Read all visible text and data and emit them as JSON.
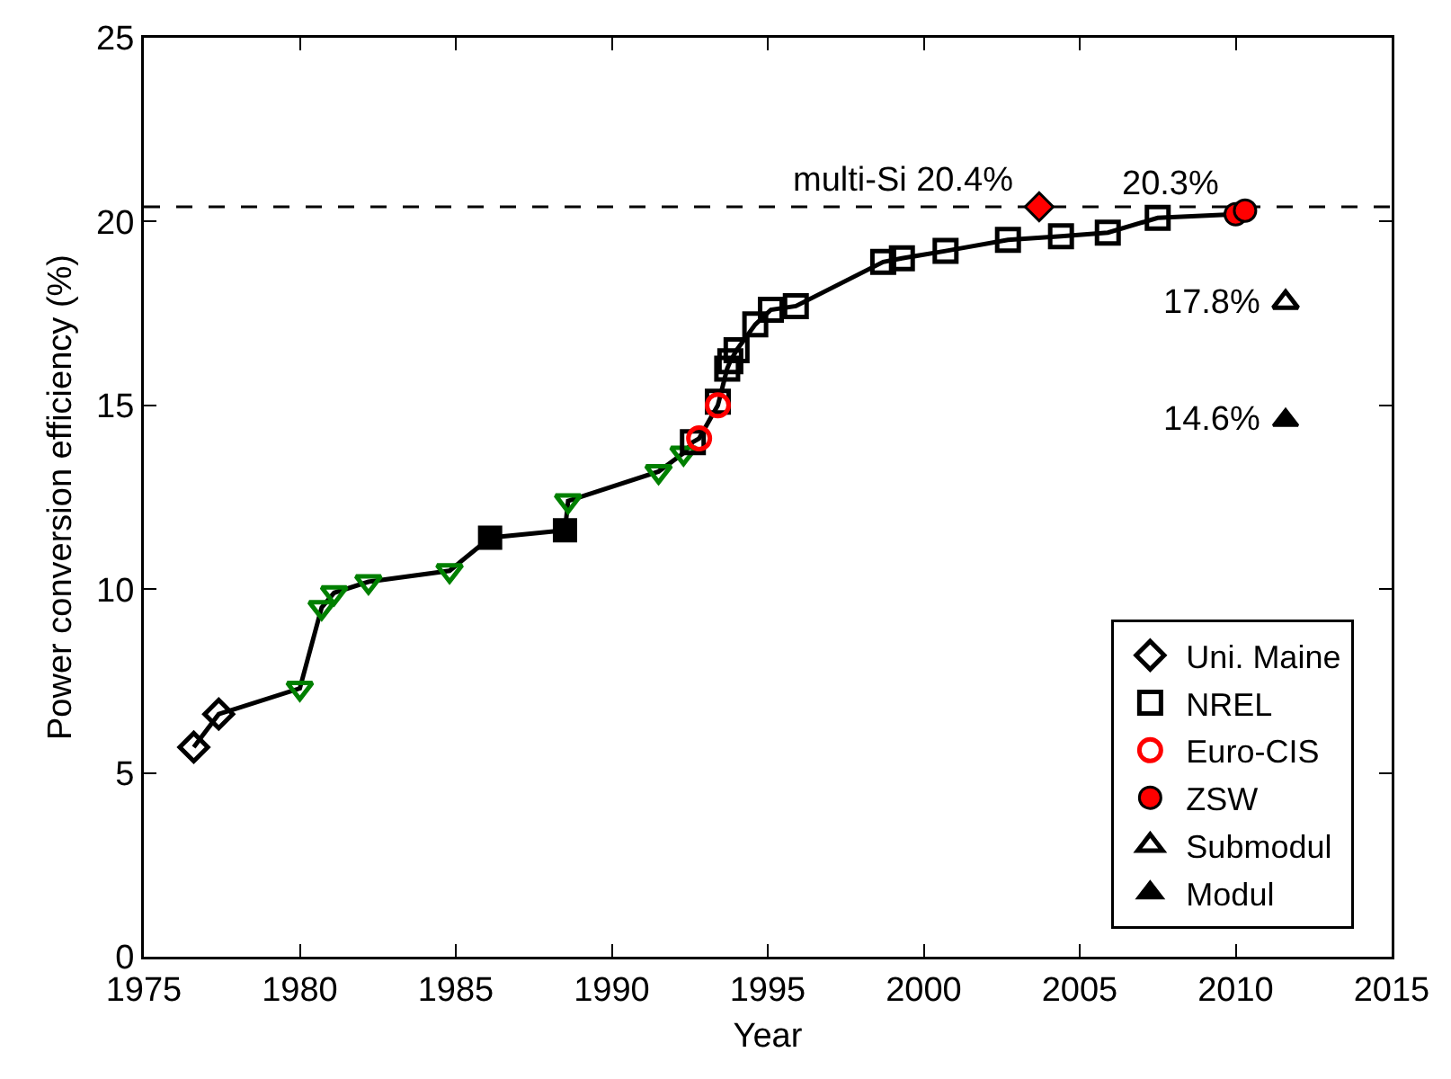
{
  "chart_data": {
    "type": "scatter",
    "xlabel": "Year",
    "ylabel": "Power conversion efficiency (%)",
    "xlim": [
      1975,
      2015
    ],
    "xticks": [
      1975,
      1980,
      1985,
      1990,
      1995,
      2000,
      2005,
      2010,
      2015
    ],
    "ylim": [
      0,
      25
    ],
    "yticks": [
      0,
      5,
      10,
      15,
      20,
      25
    ],
    "grid": false,
    "legend": "bottom right",
    "series": [
      {
        "type": "line",
        "color": "#000000",
        "marker": "none",
        "line_style": "solid",
        "x": [
          1976.6,
          1977.4,
          1980.0,
          1980.7,
          1981.1,
          1982.2,
          1984.8,
          1986.1,
          1988.5,
          1988.6,
          1991.5,
          1992.3,
          1992.6,
          1992.8,
          1993.4,
          1993.7,
          1993.8,
          1994.0,
          1994.6,
          1995.1,
          1995.9,
          1998.7,
          1999.3,
          2000.7,
          2002.7,
          2004.4,
          2005.9,
          2007.5,
          2010.0,
          2010.3
        ],
        "values": [
          5.7,
          6.6,
          7.3,
          9.5,
          9.9,
          10.2,
          10.5,
          11.4,
          11.6,
          12.4,
          13.2,
          13.7,
          14.0,
          14.1,
          15.0,
          16.0,
          16.2,
          16.5,
          17.2,
          17.6,
          17.7,
          18.9,
          19.0,
          19.2,
          19.5,
          19.6,
          19.7,
          20.1,
          20.2,
          20.3
        ]
      },
      {
        "name": "Uni. Maine",
        "color": "#000000",
        "marker": "diamond-open",
        "x": [
          1976.6,
          1977.4
        ],
        "values": [
          5.7,
          6.6
        ]
      },
      {
        "color": "#008000",
        "marker": "triangle-down-open",
        "x": [
          1980.0,
          1980.7,
          1981.1,
          1982.2,
          1984.8,
          1988.6,
          1991.5,
          1992.3
        ],
        "values": [
          7.3,
          9.5,
          9.9,
          10.2,
          10.5,
          12.4,
          13.2,
          13.7
        ]
      },
      {
        "color": "#000000",
        "marker": "square",
        "x": [
          1986.1,
          1988.5
        ],
        "values": [
          11.4,
          11.6
        ]
      },
      {
        "name": "NREL",
        "color": "#000000",
        "marker": "square-open",
        "x": [
          1992.6,
          1993.4,
          1993.7,
          1993.8,
          1994.0,
          1994.6,
          1995.1,
          1995.9,
          1998.7,
          1999.3,
          2000.7,
          2002.7,
          2004.4,
          2005.9,
          2007.5
        ],
        "values": [
          14.0,
          15.1,
          16.0,
          16.2,
          16.5,
          17.2,
          17.6,
          17.7,
          18.9,
          19.0,
          19.2,
          19.5,
          19.6,
          19.7,
          20.1
        ]
      },
      {
        "name": "Euro-CIS",
        "color": "#ff0000",
        "marker": "circle-open",
        "x": [
          1992.8,
          1993.4
        ],
        "values": [
          14.1,
          15.0
        ]
      },
      {
        "name": "ZSW",
        "color": "#ff0000",
        "marker": "circle",
        "x": [
          2010.0,
          2010.3
        ],
        "values": [
          20.2,
          20.3
        ]
      },
      {
        "name": "Submodul",
        "color": "#000000",
        "marker": "triangle-open",
        "x": [
          2011.6
        ],
        "values": [
          17.8
        ]
      },
      {
        "name": "Modul",
        "color": "#000000",
        "marker": "triangle",
        "x": [
          2011.6
        ],
        "values": [
          14.6
        ]
      },
      {
        "color": "#ff0000",
        "marker": "diamond",
        "x": [
          2003.7
        ],
        "values": [
          20.4
        ]
      }
    ],
    "ref_lines": [
      {
        "axis": "y",
        "value": 20.4,
        "color": "#000000",
        "line_style": "dashed"
      }
    ],
    "annotations": [
      {
        "text": "multi-Si 20.4%",
        "x": 2003.7,
        "y": 20.4
      },
      {
        "text": "20.3%",
        "x": 2010.3,
        "y": 20.3
      },
      {
        "text": "17.8%",
        "x": 2011.6,
        "y": 17.8
      },
      {
        "text": "14.6%",
        "x": 2011.6,
        "y": 14.6
      }
    ]
  }
}
